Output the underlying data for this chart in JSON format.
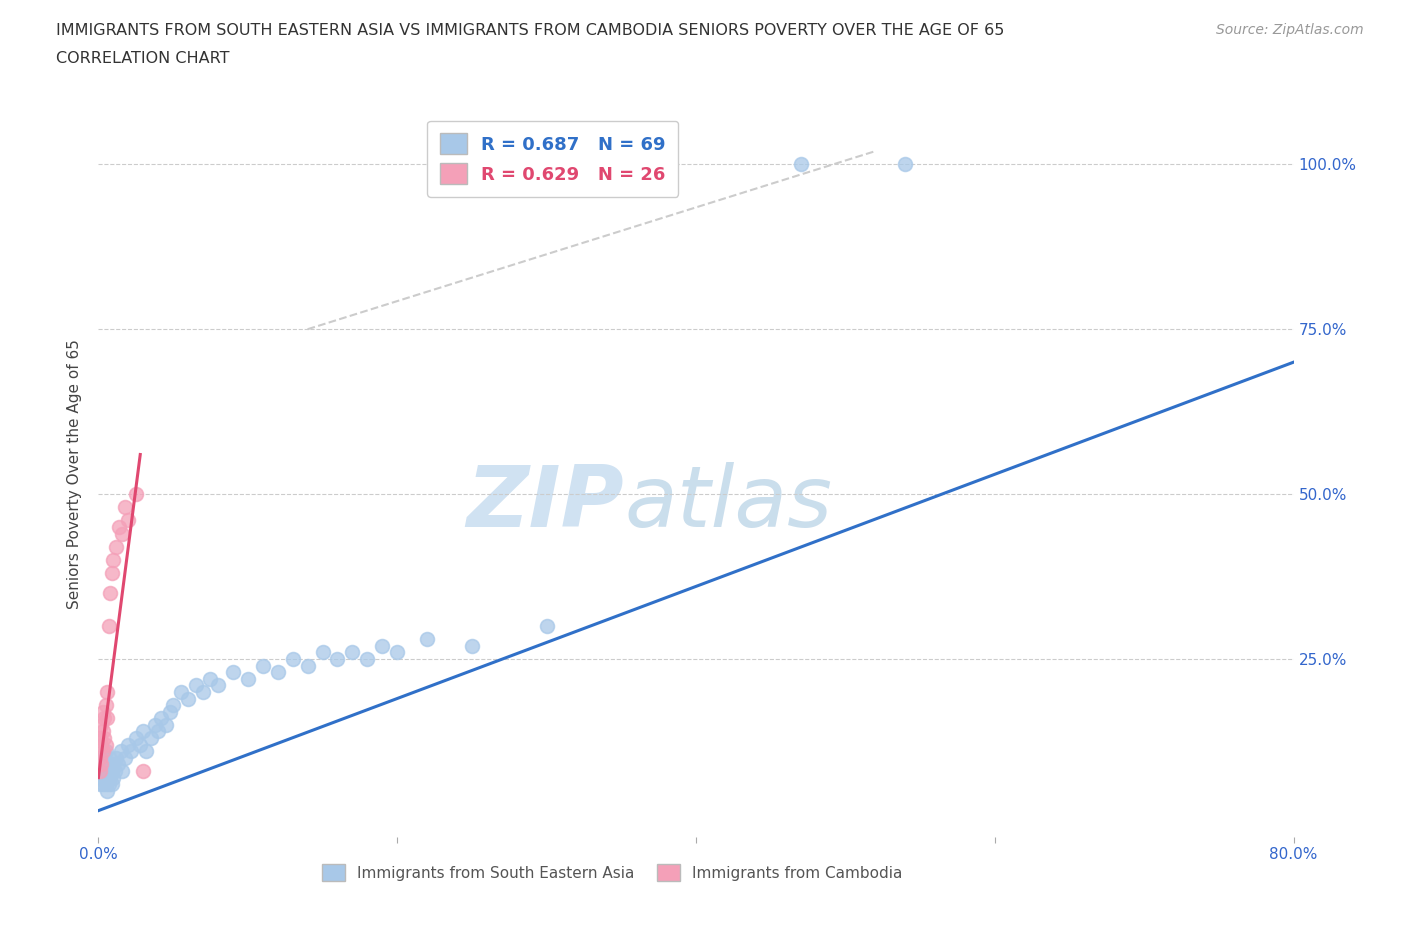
{
  "title_line1": "IMMIGRANTS FROM SOUTH EASTERN ASIA VS IMMIGRANTS FROM CAMBODIA SENIORS POVERTY OVER THE AGE OF 65",
  "title_line2": "CORRELATION CHART",
  "source_text": "Source: ZipAtlas.com",
  "ylabel": "Seniors Poverty Over the Age of 65",
  "watermark_zip": "ZIP",
  "watermark_atlas": "atlas",
  "r_sea": 0.687,
  "n_sea": 69,
  "r_cam": 0.629,
  "n_cam": 26,
  "color_sea": "#a8c8e8",
  "color_cam": "#f4a0b8",
  "line_color_sea": "#3070c8",
  "line_color_cam": "#e04870",
  "xlim": [
    0.0,
    0.8
  ],
  "ylim": [
    -0.02,
    1.08
  ],
  "legend_label_sea": "Immigrants from South Eastern Asia",
  "legend_label_cam": "Immigrants from Cambodia",
  "sea_x": [
    0.001,
    0.001,
    0.002,
    0.002,
    0.002,
    0.003,
    0.003,
    0.003,
    0.004,
    0.004,
    0.004,
    0.005,
    0.005,
    0.005,
    0.005,
    0.006,
    0.006,
    0.006,
    0.007,
    0.007,
    0.007,
    0.008,
    0.008,
    0.009,
    0.009,
    0.01,
    0.01,
    0.011,
    0.012,
    0.013,
    0.015,
    0.016,
    0.018,
    0.02,
    0.022,
    0.025,
    0.028,
    0.03,
    0.032,
    0.035,
    0.038,
    0.04,
    0.042,
    0.045,
    0.048,
    0.05,
    0.055,
    0.06,
    0.065,
    0.07,
    0.075,
    0.08,
    0.09,
    0.1,
    0.11,
    0.12,
    0.13,
    0.14,
    0.15,
    0.16,
    0.17,
    0.18,
    0.19,
    0.2,
    0.22,
    0.25,
    0.3,
    0.47,
    0.54
  ],
  "sea_y": [
    0.08,
    0.06,
    0.07,
    0.08,
    0.1,
    0.06,
    0.07,
    0.09,
    0.07,
    0.08,
    0.1,
    0.06,
    0.07,
    0.08,
    0.11,
    0.05,
    0.07,
    0.09,
    0.06,
    0.08,
    0.1,
    0.07,
    0.09,
    0.06,
    0.08,
    0.07,
    0.09,
    0.08,
    0.1,
    0.09,
    0.11,
    0.08,
    0.1,
    0.12,
    0.11,
    0.13,
    0.12,
    0.14,
    0.11,
    0.13,
    0.15,
    0.14,
    0.16,
    0.15,
    0.17,
    0.18,
    0.2,
    0.19,
    0.21,
    0.2,
    0.22,
    0.21,
    0.23,
    0.22,
    0.24,
    0.23,
    0.25,
    0.24,
    0.26,
    0.25,
    0.26,
    0.25,
    0.27,
    0.26,
    0.28,
    0.27,
    0.3,
    1.0,
    1.0
  ],
  "cam_x": [
    0.001,
    0.001,
    0.001,
    0.002,
    0.002,
    0.002,
    0.003,
    0.003,
    0.003,
    0.004,
    0.004,
    0.005,
    0.005,
    0.006,
    0.006,
    0.007,
    0.008,
    0.009,
    0.01,
    0.012,
    0.014,
    0.016,
    0.018,
    0.02,
    0.025,
    0.03
  ],
  "cam_y": [
    0.08,
    0.1,
    0.13,
    0.09,
    0.12,
    0.15,
    0.11,
    0.14,
    0.17,
    0.13,
    0.16,
    0.12,
    0.18,
    0.16,
    0.2,
    0.3,
    0.35,
    0.38,
    0.4,
    0.42,
    0.45,
    0.44,
    0.48,
    0.46,
    0.5,
    0.08
  ],
  "sea_line_x": [
    0.0,
    0.8
  ],
  "sea_line_y": [
    0.02,
    0.7
  ],
  "cam_line_x": [
    0.0,
    0.028
  ],
  "cam_line_y": [
    0.07,
    0.56
  ],
  "diag_line_x": [
    0.14,
    0.52
  ],
  "diag_line_y": [
    0.75,
    1.02
  ],
  "figsize": [
    14.06,
    9.3
  ],
  "dpi": 100
}
